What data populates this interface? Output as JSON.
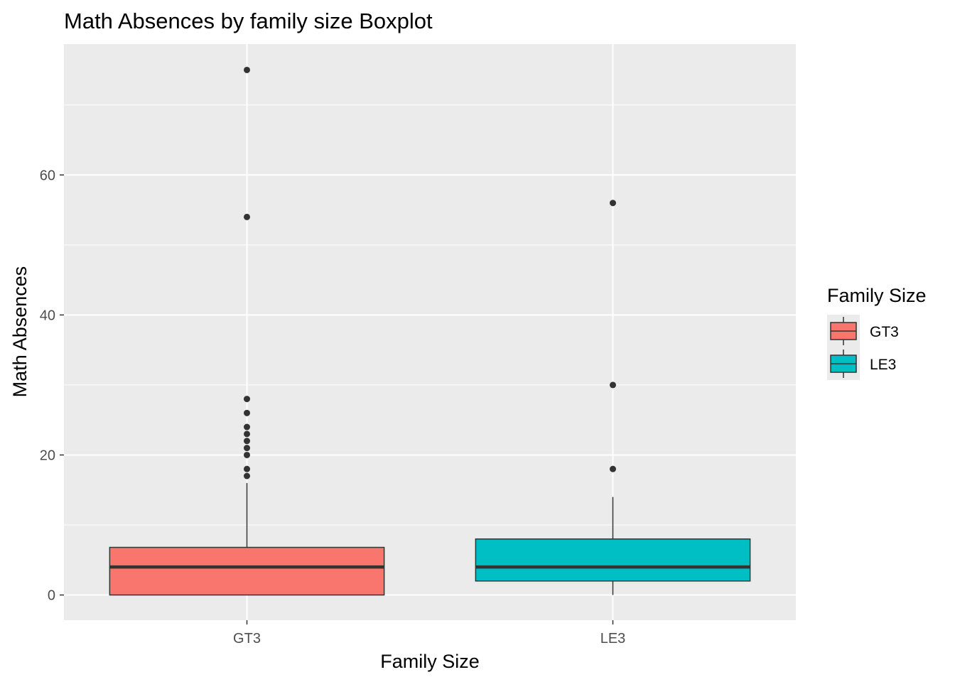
{
  "chart_data": {
    "type": "boxplot",
    "title": "Math Absences by family size Boxplot",
    "xlabel": "Family Size",
    "ylabel": "Math Absences",
    "categories": [
      "GT3",
      "LE3"
    ],
    "ylim": [
      -3.6,
      78.7
    ],
    "yticks": [
      0,
      20,
      40,
      60
    ],
    "yticks_labels": [
      "0",
      "20",
      "40",
      "60"
    ],
    "grid": true,
    "panel_background": "#EBEBEB",
    "grid_color": "#FFFFFF",
    "legend": {
      "title": "Family Size",
      "position": "right",
      "entries": [
        {
          "label": "GT3",
          "color": "#F8766D"
        },
        {
          "label": "LE3",
          "color": "#00BFC4"
        }
      ]
    },
    "series": [
      {
        "category": "GT3",
        "color": "#F8766D",
        "min": 0,
        "q1": 0,
        "median": 4,
        "q3": 6.8,
        "whisker_high": 16,
        "outliers": [
          75,
          54,
          28,
          26,
          24,
          23,
          22,
          21,
          20,
          18,
          17
        ]
      },
      {
        "category": "LE3",
        "color": "#00BFC4",
        "min": 0,
        "q1": 2,
        "median": 4,
        "q3": 8,
        "whisker_high": 14,
        "outliers": [
          56,
          30,
          18
        ]
      }
    ]
  }
}
